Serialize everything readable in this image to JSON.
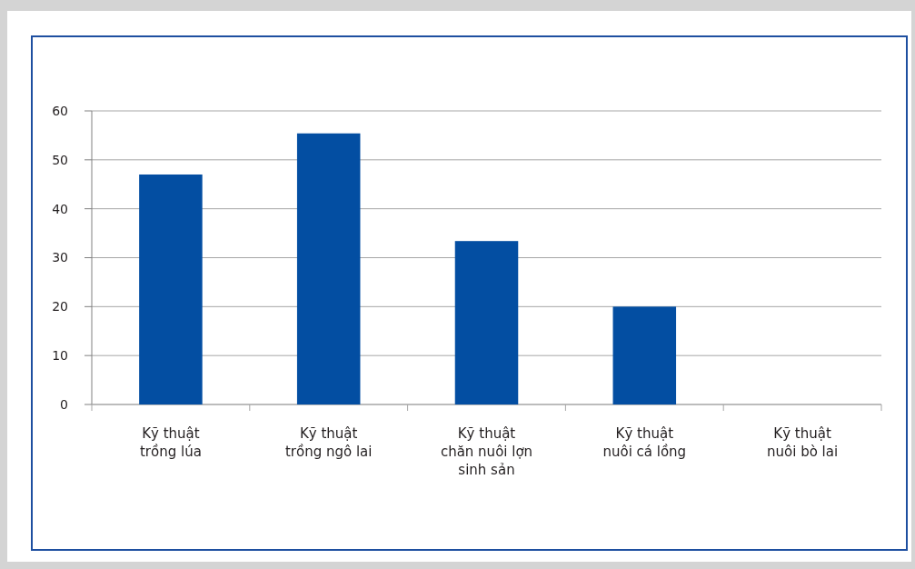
{
  "chart_data": {
    "type": "bar",
    "categories": [
      "Kỹ thuật\ntrồng lúa",
      "Kỹ thuật\ntrồng ngô lai",
      "Kỹ thuật\nchăn nuôi lợn\nsinh sản",
      "Kỹ thuật\nnuôi cá lồng",
      "Kỹ thuật\nnuôi bò lai"
    ],
    "values": [
      47,
      55.4,
      33.4,
      20,
      0
    ],
    "color": "#034ea2",
    "ylim": [
      0,
      60
    ],
    "yticks": [
      0,
      10,
      20,
      30,
      40,
      50,
      60
    ],
    "grid": "y"
  }
}
